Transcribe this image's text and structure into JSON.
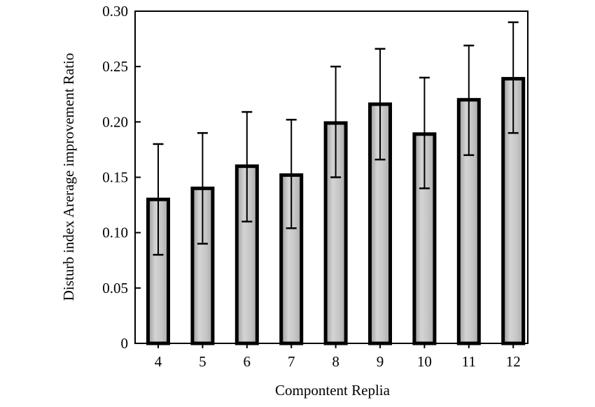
{
  "chart_data": {
    "type": "bar",
    "title": "",
    "xlabel": "Compontent Replia",
    "ylabel": "Disturb index Arerage improvement Ratio",
    "categories": [
      "4",
      "5",
      "6",
      "7",
      "8",
      "9",
      "10",
      "11",
      "12"
    ],
    "values": [
      0.13,
      0.14,
      0.16,
      0.152,
      0.199,
      0.216,
      0.189,
      0.22,
      0.239
    ],
    "error_upper": [
      0.18,
      0.19,
      0.209,
      0.202,
      0.25,
      0.266,
      0.24,
      0.269,
      0.29
    ],
    "error_lower": [
      0.08,
      0.09,
      0.11,
      0.104,
      0.15,
      0.166,
      0.14,
      0.17,
      0.19
    ],
    "ylim": [
      0,
      0.3
    ],
    "yticks": [
      "0",
      "0.05",
      "0.10",
      "0.15",
      "0.20",
      "0.25",
      "0.30"
    ],
    "grid": false,
    "legend": "none",
    "colors": {
      "bar_fill": "#c8c8c8",
      "bar_edge": "#000000",
      "axis": "#000000"
    }
  }
}
